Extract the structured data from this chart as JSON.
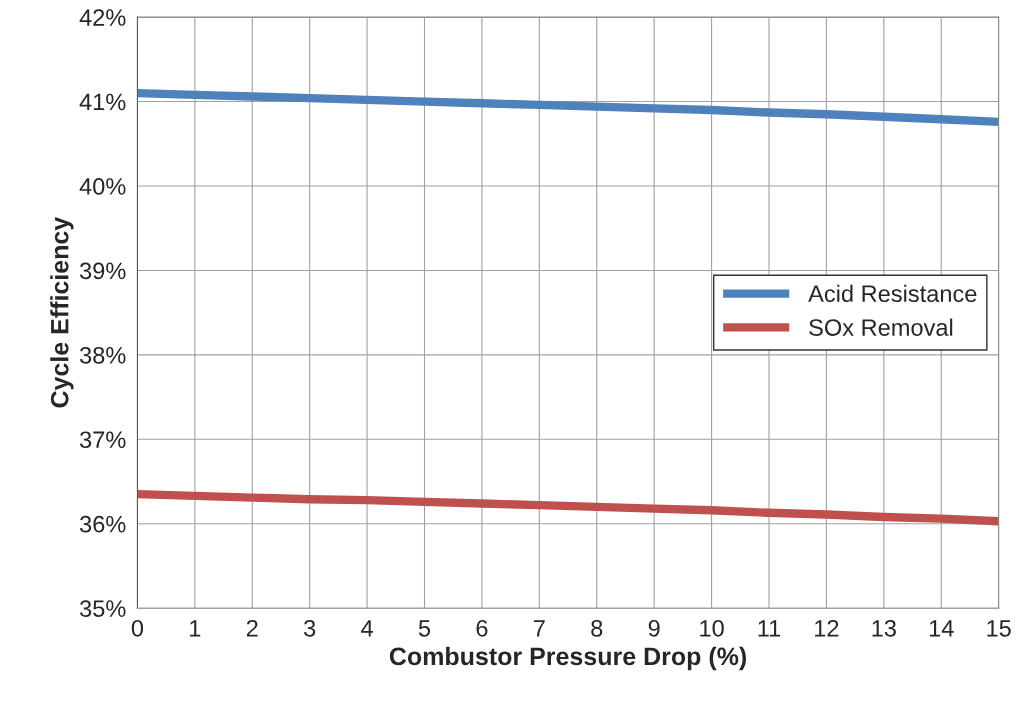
{
  "chart_data": {
    "type": "line",
    "xlabel": "Combustor Pressure Drop (%)",
    "ylabel": "Cycle Efficiency",
    "x": [
      0,
      1,
      2,
      3,
      4,
      5,
      6,
      7,
      8,
      9,
      10,
      11,
      12,
      13,
      14,
      15
    ],
    "series": [
      {
        "name": "Acid Resistance",
        "color": "#4f81bd",
        "values": [
          41.1,
          41.08,
          41.06,
          41.04,
          41.02,
          41.0,
          40.98,
          40.96,
          40.94,
          40.92,
          40.9,
          40.87,
          40.85,
          40.82,
          40.79,
          40.76
        ]
      },
      {
        "name": "SOx Removal",
        "color": "#c0504d",
        "values": [
          36.35,
          36.33,
          36.31,
          36.29,
          36.28,
          36.26,
          36.24,
          36.22,
          36.2,
          36.18,
          36.16,
          36.13,
          36.11,
          36.08,
          36.06,
          36.03
        ]
      }
    ],
    "xlim": [
      0,
      15
    ],
    "xticks": [
      0,
      1,
      2,
      3,
      4,
      5,
      6,
      7,
      8,
      9,
      10,
      11,
      12,
      13,
      14,
      15
    ],
    "ylim": [
      35,
      42
    ],
    "yticks": [
      {
        "value": 35,
        "label": "35%"
      },
      {
        "value": 36,
        "label": "36%"
      },
      {
        "value": 37,
        "label": "37%"
      },
      {
        "value": 38,
        "label": "38%"
      },
      {
        "value": 39,
        "label": "39%"
      },
      {
        "value": 40,
        "label": "40%"
      },
      {
        "value": 41,
        "label": "41%"
      },
      {
        "value": 42,
        "label": "42%"
      }
    ],
    "grid": true,
    "legend": "right",
    "marker": "none",
    "line_style": "solid"
  }
}
